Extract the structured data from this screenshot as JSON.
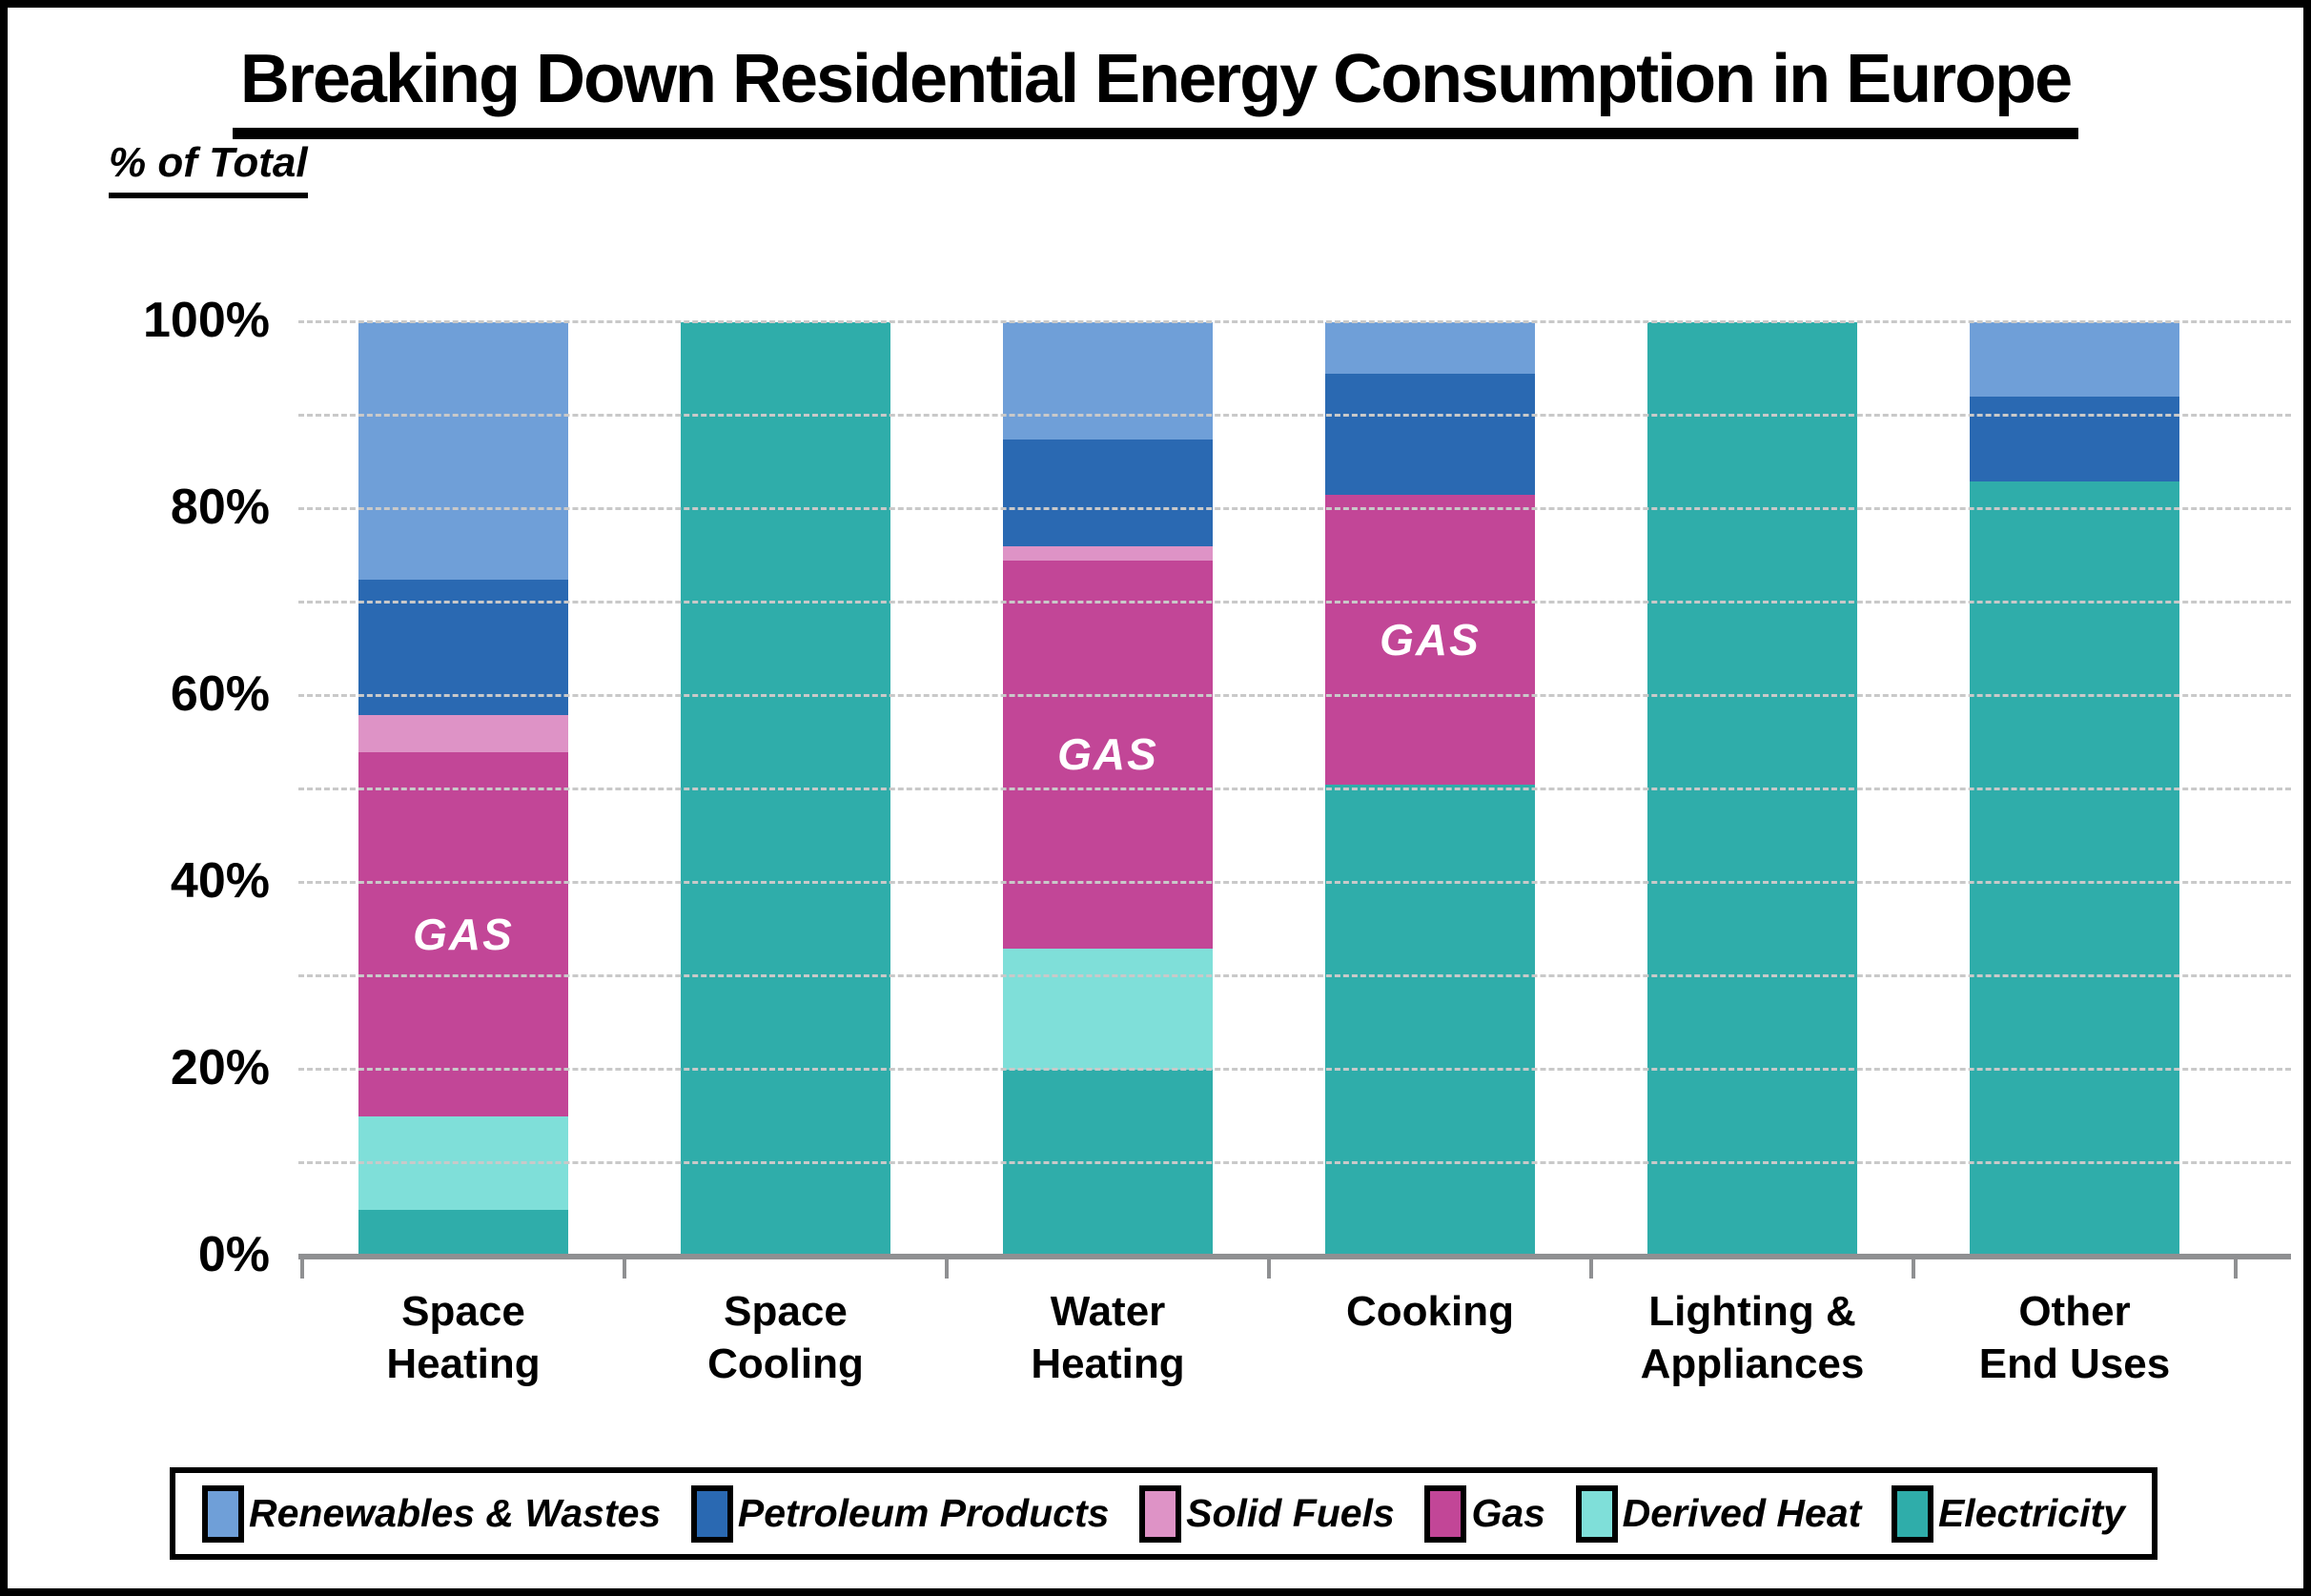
{
  "page": {
    "background_color": "#ffffff",
    "border_color": "#000000"
  },
  "chart_data": {
    "type": "bar",
    "subtype": "stacked-100-percent-vertical",
    "title": "Breaking Down Residential Energy Consumption in Europe",
    "ylabel": "% of Total",
    "xlabel": "",
    "ylim": [
      0,
      100
    ],
    "grid": "horizontal, dashed, every 10%",
    "legend_position": "bottom",
    "gas_overlay_text": "GAS",
    "categories": [
      "Space Heating",
      "Space Cooling",
      "Water Heating",
      "Cooking",
      "Lighting & Appliances",
      "Other End Uses"
    ],
    "category_label_lines": [
      [
        "Space",
        "Heating"
      ],
      [
        "Space",
        "Cooling"
      ],
      [
        "Water",
        "Heating"
      ],
      [
        "Cooking"
      ],
      [
        "Lighting &",
        "Appliances"
      ],
      [
        "Other",
        "End Uses"
      ]
    ],
    "stack_order_bottom_to_top": [
      "electricity",
      "derived_heat",
      "gas",
      "solid_fuels",
      "petroleum_products",
      "renewables_wastes"
    ],
    "series": [
      {
        "key": "electricity",
        "name": "Electricity",
        "color": "#2FADAA",
        "values": [
          5,
          100,
          20,
          50.5,
          100,
          83
        ]
      },
      {
        "key": "derived_heat",
        "name": "Derived Heat",
        "color": "#7FDFD9",
        "values": [
          10,
          0,
          13,
          0,
          0,
          0
        ]
      },
      {
        "key": "gas",
        "name": "Gas",
        "color": "#C24697",
        "values": [
          39,
          0,
          41.5,
          31,
          0,
          0
        ]
      },
      {
        "key": "solid_fuels",
        "name": "Solid Fuels",
        "color": "#DE93C6",
        "values": [
          4,
          0,
          1.5,
          0,
          0,
          0
        ]
      },
      {
        "key": "petroleum_products",
        "name": "Petroleum Products",
        "color": "#2A69B2",
        "values": [
          14.5,
          0,
          11.5,
          13,
          0,
          9
        ]
      },
      {
        "key": "renewables_wastes",
        "name": "Renewables & Wastes",
        "color": "#6F9FD8",
        "values": [
          27.5,
          0,
          12.5,
          5.5,
          0,
          8
        ]
      }
    ],
    "gas_segment_labels": [
      true,
      false,
      true,
      true,
      false,
      false
    ],
    "y_axis": {
      "gridline_step": 10,
      "ticks": [
        {
          "value": 0,
          "label": "0%"
        },
        {
          "value": 20,
          "label": "20%"
        },
        {
          "value": 40,
          "label": "40%"
        },
        {
          "value": 60,
          "label": "60%"
        },
        {
          "value": 80,
          "label": "80%"
        },
        {
          "value": 100,
          "label": "100%"
        }
      ]
    },
    "legend": {
      "items": [
        {
          "key": "renewables_wastes",
          "label": "Renewables & Wastes",
          "color": "#6F9FD8"
        },
        {
          "key": "petroleum_products",
          "label": "Petroleum Products",
          "color": "#2A69B2"
        },
        {
          "key": "solid_fuels",
          "label": "Solid Fuels",
          "color": "#DE93C6"
        },
        {
          "key": "gas",
          "label": "Gas",
          "color": "#C24697"
        },
        {
          "key": "derived_heat",
          "label": "Derived Heat",
          "color": "#7FDFD9"
        },
        {
          "key": "electricity",
          "label": "Electricity",
          "color": "#2FADAA"
        }
      ]
    },
    "style": {
      "axis_line_color": "#8f9092",
      "gridline_color": "#c9c9c9",
      "gas_text_color": "#ffffff"
    }
  }
}
